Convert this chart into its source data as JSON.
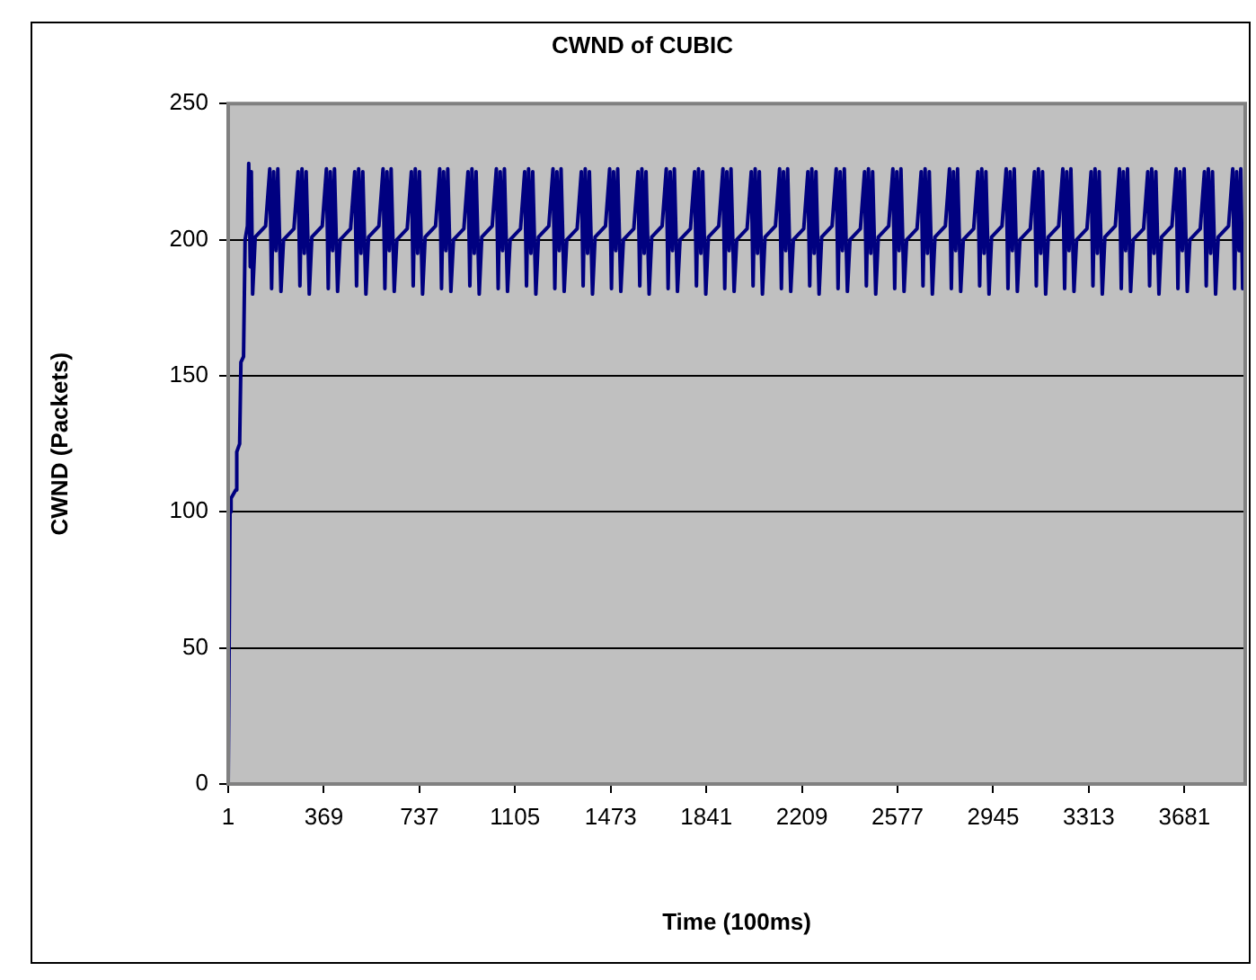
{
  "chart_data": {
    "type": "line",
    "title": "CWND of CUBIC",
    "xlabel": "Time (100ms)",
    "ylabel": "CWND (Packets)",
    "xlim": [
      1,
      3915
    ],
    "xticks": [
      1,
      369,
      737,
      1105,
      1473,
      1841,
      2209,
      2577,
      2945,
      3313,
      3681
    ],
    "ylim": [
      0,
      250
    ],
    "yticks": [
      0,
      50,
      100,
      150,
      200,
      250
    ],
    "grid": "y",
    "marker": "none",
    "color": "#000080",
    "x": [
      1,
      8,
      12,
      30,
      34,
      45,
      50,
      60,
      66,
      75,
      80,
      86,
      90,
      95,
      105,
      145,
      161,
      168,
      176,
      185,
      192,
      204,
      214,
      254,
      270,
      277,
      285,
      294,
      301,
      313,
      323,
      363,
      379,
      386,
      394,
      403,
      410,
      422,
      432,
      472,
      488,
      495,
      503,
      512,
      519,
      531,
      541,
      581,
      597,
      604,
      612,
      621,
      628,
      640,
      650,
      690,
      706,
      713,
      721,
      730,
      737,
      749,
      759,
      799,
      815,
      822,
      830,
      839,
      846,
      858,
      868,
      908,
      924,
      931,
      939,
      948,
      955,
      967,
      977,
      1017,
      1033,
      1040,
      1048,
      1057,
      1064,
      1076,
      1086,
      1126,
      1142,
      1149,
      1157,
      1166,
      1173,
      1185,
      1195,
      1235,
      1251,
      1258,
      1266,
      1275,
      1282,
      1294,
      1304,
      1344,
      1360,
      1367,
      1375,
      1384,
      1391,
      1403,
      1413,
      1453,
      1469,
      1476,
      1484,
      1493,
      1500,
      1512,
      1522,
      1562,
      1578,
      1585,
      1593,
      1602,
      1609,
      1621,
      1631,
      1671,
      1687,
      1694,
      1702,
      1711,
      1718,
      1730,
      1740,
      1780,
      1796,
      1803,
      1811,
      1820,
      1827,
      1839,
      1849,
      1889,
      1905,
      1912,
      1920,
      1929,
      1936,
      1948,
      1958,
      1998,
      2014,
      2021,
      2029,
      2038,
      2045,
      2057,
      2067,
      2107,
      2123,
      2130,
      2138,
      2147,
      2154,
      2166,
      2176,
      2216,
      2232,
      2239,
      2247,
      2256,
      2263,
      2275,
      2285,
      2325,
      2341,
      2348,
      2356,
      2365,
      2372,
      2384,
      2394,
      2434,
      2450,
      2457,
      2465,
      2474,
      2481,
      2493,
      2503,
      2543,
      2559,
      2566,
      2574,
      2583,
      2590,
      2602,
      2612,
      2652,
      2668,
      2675,
      2683,
      2692,
      2699,
      2711,
      2721,
      2761,
      2777,
      2784,
      2792,
      2801,
      2808,
      2820,
      2830,
      2870,
      2886,
      2893,
      2901,
      2910,
      2917,
      2929,
      2939,
      2979,
      2995,
      3002,
      3010,
      3019,
      3026,
      3038,
      3048,
      3088,
      3104,
      3111,
      3119,
      3128,
      3135,
      3147,
      3157,
      3197,
      3213,
      3220,
      3228,
      3237,
      3244,
      3256,
      3266,
      3306,
      3322,
      3329,
      3337,
      3346,
      3353,
      3365,
      3375,
      3415,
      3431,
      3438,
      3446,
      3455,
      3462,
      3474,
      3484,
      3524,
      3540,
      3547,
      3555,
      3564,
      3571,
      3583,
      3593,
      3633,
      3649,
      3656,
      3664,
      3673,
      3680,
      3692,
      3702,
      3742,
      3758,
      3765,
      3773,
      3782,
      3789,
      3801,
      3811,
      3851,
      3867,
      3874,
      3882,
      3891,
      3898,
      3905,
      3912
    ],
    "values": [
      0,
      100,
      105,
      108,
      122,
      125,
      155,
      157,
      200,
      205,
      228,
      190,
      225,
      180,
      201,
      205,
      226,
      182,
      225,
      196,
      226,
      181,
      200,
      204,
      225,
      183,
      226,
      195,
      225,
      180,
      201,
      205,
      226,
      182,
      225,
      196,
      226,
      181,
      200,
      204,
      225,
      183,
      226,
      195,
      225,
      180,
      201,
      205,
      226,
      182,
      225,
      196,
      226,
      181,
      200,
      204,
      225,
      183,
      226,
      195,
      225,
      180,
      201,
      205,
      226,
      182,
      225,
      196,
      226,
      181,
      200,
      204,
      225,
      183,
      226,
      195,
      225,
      180,
      201,
      205,
      226,
      182,
      225,
      196,
      226,
      181,
      200,
      204,
      225,
      183,
      226,
      195,
      225,
      180,
      201,
      205,
      226,
      182,
      225,
      196,
      226,
      181,
      200,
      204,
      225,
      183,
      226,
      195,
      225,
      180,
      201,
      205,
      226,
      182,
      225,
      196,
      226,
      181,
      200,
      204,
      225,
      183,
      226,
      195,
      225,
      180,
      201,
      205,
      226,
      182,
      225,
      196,
      226,
      181,
      200,
      204,
      225,
      183,
      226,
      195,
      225,
      180,
      201,
      205,
      226,
      182,
      225,
      196,
      226,
      181,
      200,
      204,
      225,
      183,
      226,
      195,
      225,
      180,
      201,
      205,
      226,
      182,
      225,
      196,
      226,
      181,
      200,
      204,
      225,
      183,
      226,
      195,
      225,
      180,
      201,
      205,
      226,
      182,
      225,
      196,
      226,
      181,
      200,
      204,
      225,
      183,
      226,
      195,
      225,
      180,
      201,
      205,
      226,
      182,
      225,
      196,
      226,
      181,
      200,
      204,
      225,
      183,
      226,
      195,
      225,
      180,
      201,
      205,
      226,
      182,
      225,
      196,
      226,
      181,
      200,
      204,
      225,
      183,
      226,
      195,
      225,
      180,
      201,
      205,
      226,
      182,
      225,
      196,
      226,
      181,
      200,
      204,
      225,
      183,
      226,
      195,
      225,
      180,
      201,
      205,
      226,
      182,
      225,
      196,
      226,
      181,
      200,
      204,
      225,
      183,
      226,
      195,
      225,
      180,
      201,
      205,
      226,
      182,
      225,
      196,
      226,
      181,
      200,
      204,
      225,
      183,
      226,
      195,
      225,
      180,
      201,
      205,
      226,
      182,
      225,
      196,
      226,
      181,
      200,
      204,
      225,
      183,
      226,
      195,
      225,
      180,
      201,
      205,
      226,
      182,
      225,
      196,
      226,
      182,
      203
    ]
  }
}
